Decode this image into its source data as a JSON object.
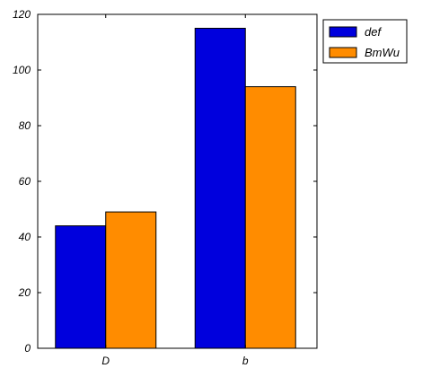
{
  "chart_data": {
    "type": "bar",
    "categories": [
      "D",
      "b"
    ],
    "series": [
      {
        "name": "def",
        "color": "#0000dd",
        "values": [
          44,
          115
        ]
      },
      {
        "name": "BmWu",
        "color": "#ff8c00",
        "values": [
          49,
          94
        ]
      }
    ],
    "ylim": [
      0,
      120
    ],
    "yticks": [
      0,
      20,
      40,
      60,
      80,
      100,
      120
    ],
    "grid": false,
    "legend_position": "outside-top-right",
    "title": "",
    "xlabel": "",
    "ylabel": ""
  }
}
